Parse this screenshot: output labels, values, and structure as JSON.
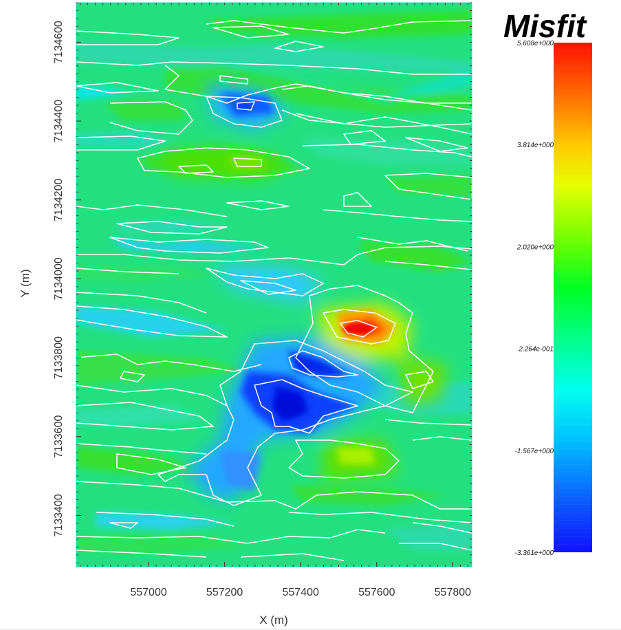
{
  "chart_data": {
    "type": "heatmap",
    "title": "Misfit",
    "xlabel": "X (m)",
    "ylabel": "Y (m)",
    "xlim": [
      556810,
      557850
    ],
    "ylim": [
      7133270,
      7134700
    ],
    "x_ticks": [
      "557000",
      "557200",
      "557400",
      "557600",
      "557800"
    ],
    "y_ticks": [
      "7133400",
      "7133600",
      "7133800",
      "7134000",
      "7134200",
      "7134400",
      "7134600"
    ],
    "colorbar": {
      "range": [
        -3.361,
        5.608
      ],
      "labels": [
        "5.608e+000",
        "3.814e+000",
        "2.020e+000",
        "2.264e-001",
        "-1.567e+000",
        "-3.361e+000"
      ],
      "colors": [
        "#0000ff",
        "#00bfff",
        "#00ffee",
        "#00ff44",
        "#d2ff00",
        "#ffd200",
        "#ff7000",
        "#ff0000"
      ]
    },
    "hotspots": [
      {
        "x": 557545,
        "y": 7133820,
        "value": 5.6
      },
      {
        "x": 557390,
        "y": 7133590,
        "value": -3.3
      },
      {
        "x": 557420,
        "y": 7133710,
        "value": -3.0
      },
      {
        "x": 557240,
        "y": 7134420,
        "value": -2.2
      },
      {
        "x": 557240,
        "y": 7133420,
        "value": -2.0
      },
      {
        "x": 557330,
        "y": 7133950,
        "value": -1.5
      },
      {
        "x": 557250,
        "y": 7134280,
        "value": 2.2
      },
      {
        "x": 557520,
        "y": 7133480,
        "value": 2.3
      },
      {
        "x": 557630,
        "y": 7133700,
        "value": 1.6
      }
    ],
    "grid": false,
    "legend": "right"
  }
}
